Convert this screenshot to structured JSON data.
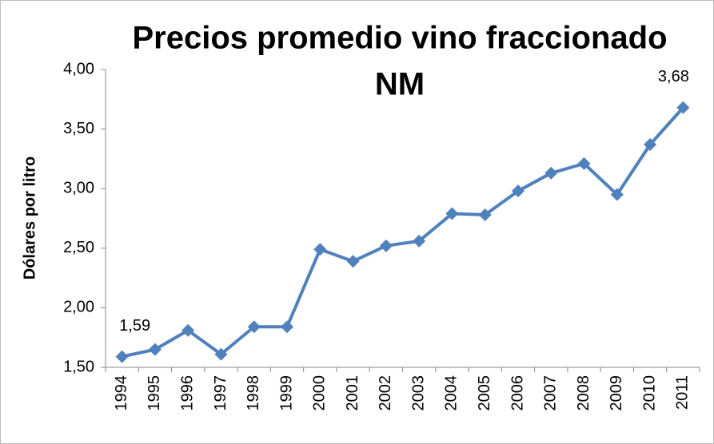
{
  "chart_data": {
    "type": "line",
    "title": [
      "Precios promedio vino fraccionado",
      "NM"
    ],
    "y_label": "Dólares por litro",
    "categories": [
      "1994",
      "1995",
      "1996",
      "1997",
      "1998",
      "1999",
      "2000",
      "2001",
      "2002",
      "2003",
      "2004",
      "2005",
      "2006",
      "2007",
      "2008",
      "2009",
      "2010",
      "2011"
    ],
    "series": [
      {
        "name": "Precios promedio",
        "color": "#4f81bd",
        "values": [
          1.59,
          1.65,
          1.81,
          1.61,
          1.84,
          1.84,
          2.49,
          2.39,
          2.52,
          2.56,
          2.79,
          2.78,
          2.98,
          3.13,
          3.21,
          2.95,
          3.37,
          3.68
        ],
        "value_labels": [
          "1,59",
          null,
          null,
          null,
          null,
          null,
          null,
          null,
          null,
          null,
          null,
          null,
          null,
          null,
          null,
          null,
          null,
          "3,68"
        ]
      }
    ],
    "ylim": [
      1.5,
      4.0
    ],
    "yticks": [
      {
        "value": 1.5,
        "label": "1,50"
      },
      {
        "value": 2.0,
        "label": "2,00"
      },
      {
        "value": 2.5,
        "label": "2,50"
      },
      {
        "value": 3.0,
        "label": "3,00"
      },
      {
        "value": 3.5,
        "label": "3,50"
      },
      {
        "value": 4.0,
        "label": "4,00"
      }
    ],
    "grid": false
  }
}
